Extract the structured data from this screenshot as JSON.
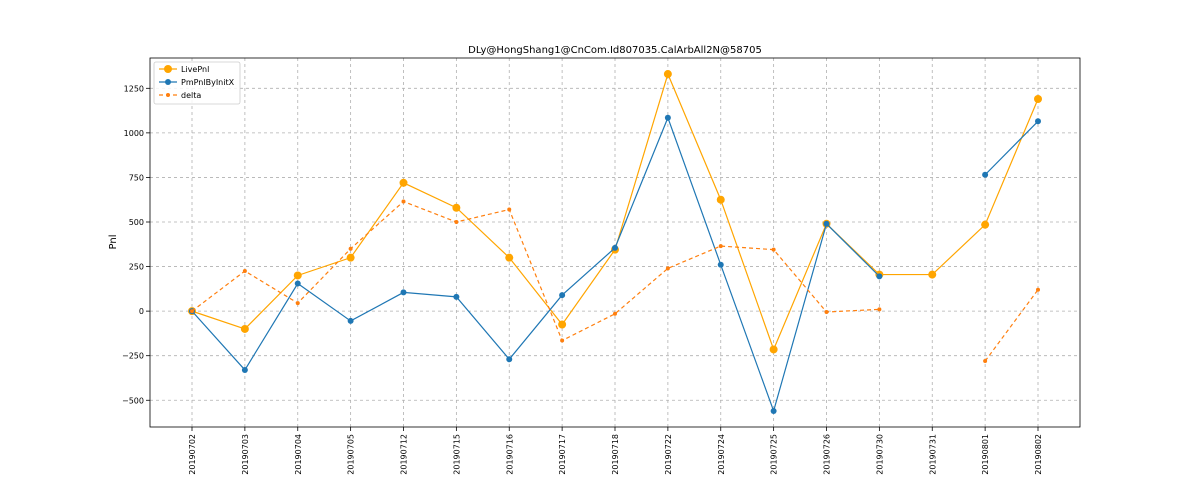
{
  "chart_data": {
    "type": "line",
    "title": "DLy@HongShang1@CnCom.Id807035.CalArbAll2N@58705",
    "xlabel": "",
    "ylabel": "Pnl",
    "ylim": [
      -650,
      1420
    ],
    "yticks": [
      -500,
      -250,
      0,
      250,
      500,
      750,
      1000,
      1250
    ],
    "ytick_labels": [
      "−500",
      "−250",
      "0",
      "250",
      "500",
      "750",
      "1000",
      "1250"
    ],
    "categories": [
      "20190702",
      "20190703",
      "20190704",
      "20190705",
      "20190712",
      "20190715",
      "20190716",
      "20190717",
      "20190718",
      "20190722",
      "20190724",
      "20190725",
      "20190726",
      "20190730",
      "20190731",
      "20190801",
      "20190802"
    ],
    "grid": true,
    "legend_position": "top-left",
    "series": [
      {
        "name": "LivePnl",
        "color": "#ffa500",
        "style": "solid",
        "marker_size": "large",
        "values": [
          0,
          -100,
          200,
          300,
          720,
          580,
          300,
          -75,
          345,
          1330,
          625,
          -215,
          490,
          205,
          205,
          485,
          1190
        ]
      },
      {
        "name": "PmPnlByInitX",
        "color": "#1f77b4",
        "style": "solid",
        "marker_size": "medium",
        "values": [
          0,
          -330,
          155,
          -55,
          105,
          80,
          -270,
          90,
          355,
          1085,
          260,
          -560,
          490,
          195,
          null,
          765,
          1065
        ]
      },
      {
        "name": "delta",
        "color": "#ff7f0e",
        "style": "dashed",
        "marker_size": "small",
        "values": [
          0,
          225,
          45,
          350,
          615,
          500,
          570,
          -165,
          -15,
          240,
          365,
          345,
          -5,
          10,
          null,
          -280,
          120
        ]
      }
    ]
  }
}
